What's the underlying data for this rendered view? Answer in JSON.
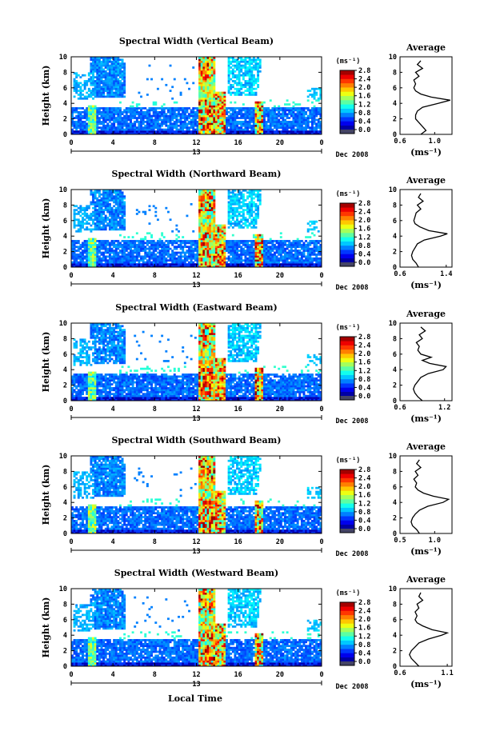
{
  "figure": {
    "xlabel": "Local Time",
    "date_label": "Dec 2008",
    "day_label": "13",
    "ylabel": "Height (km)",
    "colorbar_unit": "(ms⁻¹)",
    "avg_title": "Average",
    "avg_xlabel": "(ms⁻¹)"
  },
  "chart_data": [
    {
      "type": "heatmap",
      "title": "Spectral Width (Vertical Beam)",
      "x_ticks": [
        "0",
        "4",
        "8",
        "12",
        "16",
        "20",
        "0"
      ],
      "y_ticks": [
        "0",
        "2",
        "4",
        "6",
        "8",
        "10"
      ],
      "xlim": [
        0,
        24
      ],
      "ylim": [
        0,
        10
      ],
      "colorbar": {
        "ticks": [
          "0.0",
          "0.4",
          "0.8",
          "1.2",
          "1.6",
          "2.0",
          "2.4",
          "2.8"
        ],
        "range": [
          0,
          2.8
        ]
      },
      "average": {
        "x_ticks": [
          "0.6",
          "1.0"
        ],
        "xlim": [
          0.6,
          1.2
        ],
        "profile": [
          [
            0,
            0.84
          ],
          [
            0.5,
            0.9
          ],
          [
            1,
            0.86
          ],
          [
            1.5,
            0.82
          ],
          [
            2,
            0.78
          ],
          [
            2.5,
            0.78
          ],
          [
            3,
            0.8
          ],
          [
            3.5,
            0.86
          ],
          [
            4,
            1.04
          ],
          [
            4.4,
            1.18
          ],
          [
            4.8,
            0.96
          ],
          [
            5.2,
            0.84
          ],
          [
            5.6,
            0.78
          ],
          [
            6,
            0.76
          ],
          [
            6.5,
            0.78
          ],
          [
            7,
            0.76
          ],
          [
            7.5,
            0.82
          ],
          [
            8,
            0.78
          ],
          [
            8.5,
            0.86
          ],
          [
            9,
            0.8
          ],
          [
            9.5,
            0.84
          ]
        ]
      }
    },
    {
      "type": "heatmap",
      "title": "Spectral Width (Northward Beam)",
      "x_ticks": [
        "0",
        "4",
        "8",
        "12",
        "16",
        "20",
        "0"
      ],
      "y_ticks": [
        "0",
        "2",
        "4",
        "6",
        "8",
        "10"
      ],
      "xlim": [
        0,
        24
      ],
      "ylim": [
        0,
        10
      ],
      "colorbar": {
        "ticks": [
          "0.0",
          "0.4",
          "0.8",
          "1.2",
          "1.6",
          "2.0",
          "2.4",
          "2.8"
        ],
        "range": [
          0,
          2.8
        ]
      },
      "average": {
        "x_ticks": [
          "0.6",
          "1.4"
        ],
        "xlim": [
          0.6,
          1.5
        ],
        "profile": [
          [
            0,
            0.92
          ],
          [
            0.5,
            0.88
          ],
          [
            1,
            0.82
          ],
          [
            1.5,
            0.8
          ],
          [
            2,
            0.82
          ],
          [
            2.5,
            0.86
          ],
          [
            3,
            0.9
          ],
          [
            3.5,
            1.02
          ],
          [
            4,
            1.3
          ],
          [
            4.3,
            1.42
          ],
          [
            4.7,
            1.1
          ],
          [
            5.2,
            0.94
          ],
          [
            5.6,
            0.86
          ],
          [
            6,
            0.84
          ],
          [
            6.5,
            0.86
          ],
          [
            7,
            0.88
          ],
          [
            7.5,
            0.96
          ],
          [
            8,
            0.9
          ],
          [
            8.5,
            1.0
          ],
          [
            9,
            0.92
          ],
          [
            9.5,
            0.96
          ]
        ]
      }
    },
    {
      "type": "heatmap",
      "title": "Spectral Width (Eastward Beam)",
      "x_ticks": [
        "0",
        "4",
        "8",
        "12",
        "16",
        "20",
        "0"
      ],
      "y_ticks": [
        "0",
        "2",
        "4",
        "6",
        "8",
        "10"
      ],
      "xlim": [
        0,
        24
      ],
      "ylim": [
        0,
        10
      ],
      "colorbar": {
        "ticks": [
          "0.0",
          "0.4",
          "0.8",
          "1.2",
          "1.6",
          "2.0",
          "2.4",
          "2.8"
        ],
        "range": [
          0,
          2.8
        ]
      },
      "average": {
        "x_ticks": [
          "0.6",
          "1.2"
        ],
        "xlim": [
          0.6,
          1.3
        ],
        "profile": [
          [
            0,
            0.9
          ],
          [
            0.5,
            0.84
          ],
          [
            1,
            0.8
          ],
          [
            1.5,
            0.78
          ],
          [
            2,
            0.8
          ],
          [
            2.5,
            0.84
          ],
          [
            3,
            0.88
          ],
          [
            3.5,
            0.98
          ],
          [
            4,
            1.18
          ],
          [
            4.4,
            1.22
          ],
          [
            4.8,
            1.0
          ],
          [
            5.2,
            0.9
          ],
          [
            5.6,
            1.02
          ],
          [
            6,
            0.88
          ],
          [
            6.5,
            0.84
          ],
          [
            7,
            0.86
          ],
          [
            7.5,
            0.82
          ],
          [
            8,
            0.9
          ],
          [
            8.5,
            0.86
          ],
          [
            9,
            0.94
          ],
          [
            9.5,
            0.88
          ]
        ]
      }
    },
    {
      "type": "heatmap",
      "title": "Spectral Width (Southward Beam)",
      "x_ticks": [
        "0",
        "4",
        "8",
        "12",
        "16",
        "20",
        "0"
      ],
      "y_ticks": [
        "0",
        "2",
        "4",
        "6",
        "8",
        "10"
      ],
      "xlim": [
        0,
        24
      ],
      "ylim": [
        0,
        10
      ],
      "colorbar": {
        "ticks": [
          "0.0",
          "0.4",
          "0.8",
          "1.2",
          "1.6",
          "2.0",
          "2.4",
          "2.8"
        ],
        "range": [
          0,
          2.8
        ]
      },
      "average": {
        "x_ticks": [
          "0.5",
          "1.0"
        ],
        "xlim": [
          0.5,
          1.25
        ],
        "profile": [
          [
            0,
            0.78
          ],
          [
            0.5,
            0.74
          ],
          [
            1,
            0.68
          ],
          [
            1.5,
            0.66
          ],
          [
            2,
            0.68
          ],
          [
            2.5,
            0.72
          ],
          [
            3,
            0.78
          ],
          [
            3.5,
            0.9
          ],
          [
            4,
            1.12
          ],
          [
            4.4,
            1.2
          ],
          [
            4.8,
            0.98
          ],
          [
            5.2,
            0.84
          ],
          [
            5.6,
            0.76
          ],
          [
            6,
            0.72
          ],
          [
            6.5,
            0.74
          ],
          [
            7,
            0.7
          ],
          [
            7.5,
            0.76
          ],
          [
            8,
            0.72
          ],
          [
            8.5,
            0.8
          ],
          [
            9,
            0.74
          ],
          [
            9.5,
            0.78
          ]
        ]
      }
    },
    {
      "type": "heatmap",
      "title": "Spectral Width (Westward Beam)",
      "x_ticks": [
        "0",
        "4",
        "8",
        "12",
        "16",
        "20",
        "0"
      ],
      "y_ticks": [
        "0",
        "2",
        "4",
        "6",
        "8",
        "10"
      ],
      "xlim": [
        0,
        24
      ],
      "ylim": [
        0,
        10
      ],
      "colorbar": {
        "ticks": [
          "0.0",
          "0.4",
          "0.8",
          "1.2",
          "1.6",
          "2.0",
          "2.4",
          "2.8"
        ],
        "range": [
          0,
          2.8
        ]
      },
      "average": {
        "x_ticks": [
          "0.6",
          "1.1"
        ],
        "xlim": [
          0.6,
          1.15
        ],
        "profile": [
          [
            0,
            0.8
          ],
          [
            0.5,
            0.76
          ],
          [
            1,
            0.72
          ],
          [
            1.5,
            0.7
          ],
          [
            2,
            0.72
          ],
          [
            2.5,
            0.76
          ],
          [
            3,
            0.8
          ],
          [
            3.5,
            0.9
          ],
          [
            4,
            1.04
          ],
          [
            4.3,
            1.1
          ],
          [
            4.7,
            0.94
          ],
          [
            5.2,
            0.84
          ],
          [
            5.6,
            0.78
          ],
          [
            6,
            0.76
          ],
          [
            6.5,
            0.78
          ],
          [
            7,
            0.76
          ],
          [
            7.5,
            0.8
          ],
          [
            8,
            0.78
          ],
          [
            8.5,
            0.84
          ],
          [
            9,
            0.8
          ],
          [
            9.5,
            0.82
          ]
        ]
      }
    }
  ]
}
